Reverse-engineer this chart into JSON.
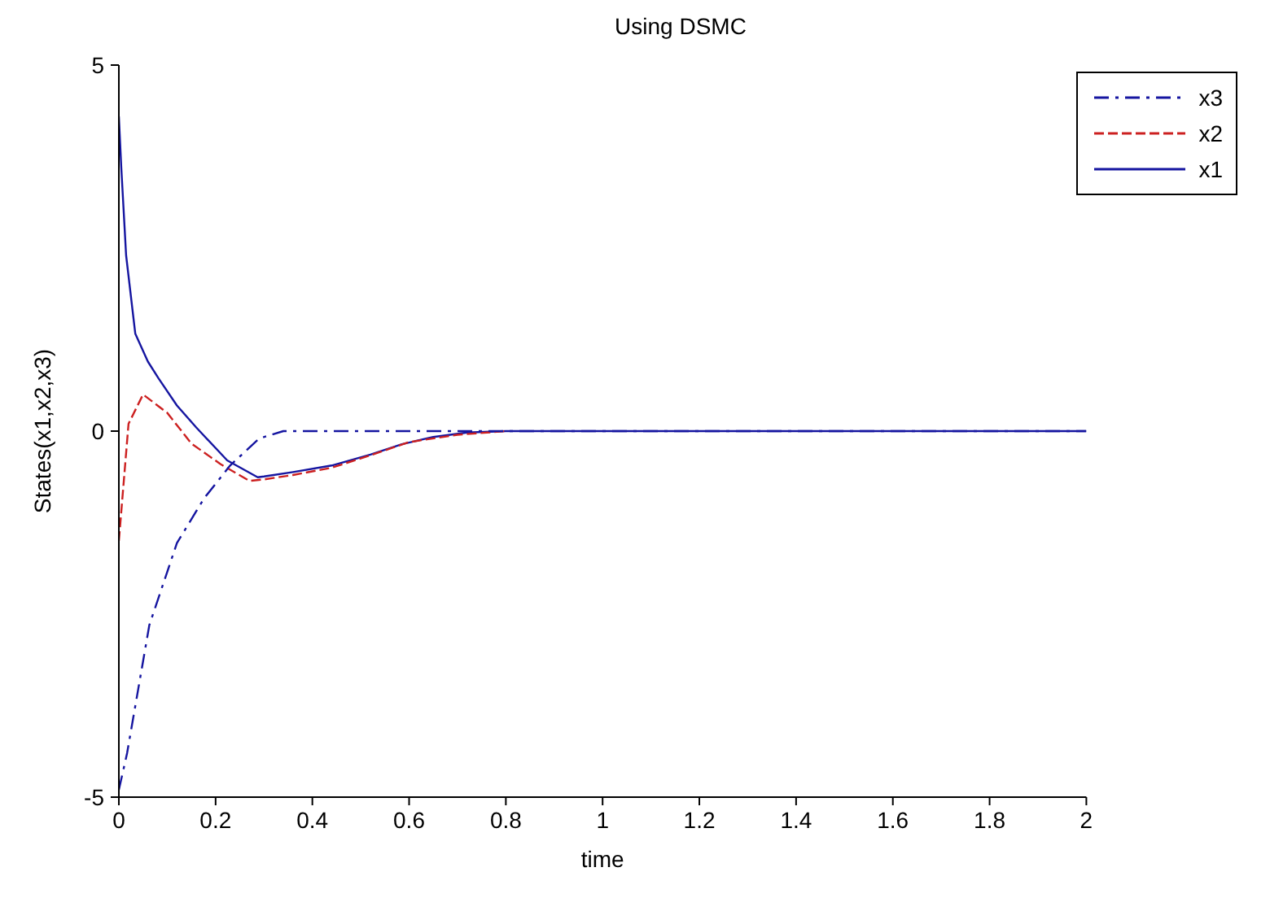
{
  "chart_data": {
    "type": "line",
    "title": "Using DSMC",
    "xlabel": "time",
    "ylabel": "States(x1,x2,x3)",
    "xlim": [
      0,
      2
    ],
    "xticks": [
      0,
      0.2,
      0.4,
      0.6,
      0.8,
      1,
      1.2,
      1.4,
      1.6,
      1.8,
      2
    ],
    "ylim": [
      -5,
      5
    ],
    "yticks": [
      -5,
      0,
      5
    ],
    "grid": false,
    "legend": "top right",
    "marker": "none",
    "series": [
      {
        "name": "x3",
        "color": "#1515a0",
        "line_style": "dashdot",
        "x": [
          0,
          0.017,
          0.063,
          0.12,
          0.176,
          0.23,
          0.29,
          0.34,
          0.4,
          0.6,
          0.8,
          1,
          1.5,
          2
        ],
        "values": [
          -4.9,
          -4.4,
          -2.65,
          -1.53,
          -0.92,
          -0.47,
          -0.1,
          0,
          0,
          0,
          0,
          0,
          0,
          0
        ]
      },
      {
        "name": "x2",
        "color": "#cc2020",
        "line_style": "dashed",
        "x": [
          0,
          0.02,
          0.05,
          0.1,
          0.15,
          0.21,
          0.27,
          0.3,
          0.36,
          0.44,
          0.52,
          0.6,
          0.7,
          0.8
        ],
        "values": [
          -1.5,
          0.1,
          0.5,
          0.25,
          -0.17,
          -0.45,
          -0.68,
          -0.66,
          -0.6,
          -0.5,
          -0.33,
          -0.15,
          -0.05,
          0
        ]
      },
      {
        "name": "x1",
        "color": "#1515a0",
        "line_style": "solid",
        "x": [
          0,
          0.005,
          0.015,
          0.034,
          0.06,
          0.082,
          0.12,
          0.16,
          0.224,
          0.287,
          0.3,
          0.36,
          0.44,
          0.52,
          0.585,
          0.65,
          0.72,
          0.8,
          1,
          1.5,
          2
        ],
        "values": [
          4.3,
          3.6,
          2.4,
          1.33,
          0.95,
          0.72,
          0.35,
          0.05,
          -0.4,
          -0.63,
          -0.62,
          -0.56,
          -0.47,
          -0.32,
          -0.18,
          -0.08,
          -0.02,
          0,
          0,
          0,
          0
        ]
      }
    ]
  }
}
